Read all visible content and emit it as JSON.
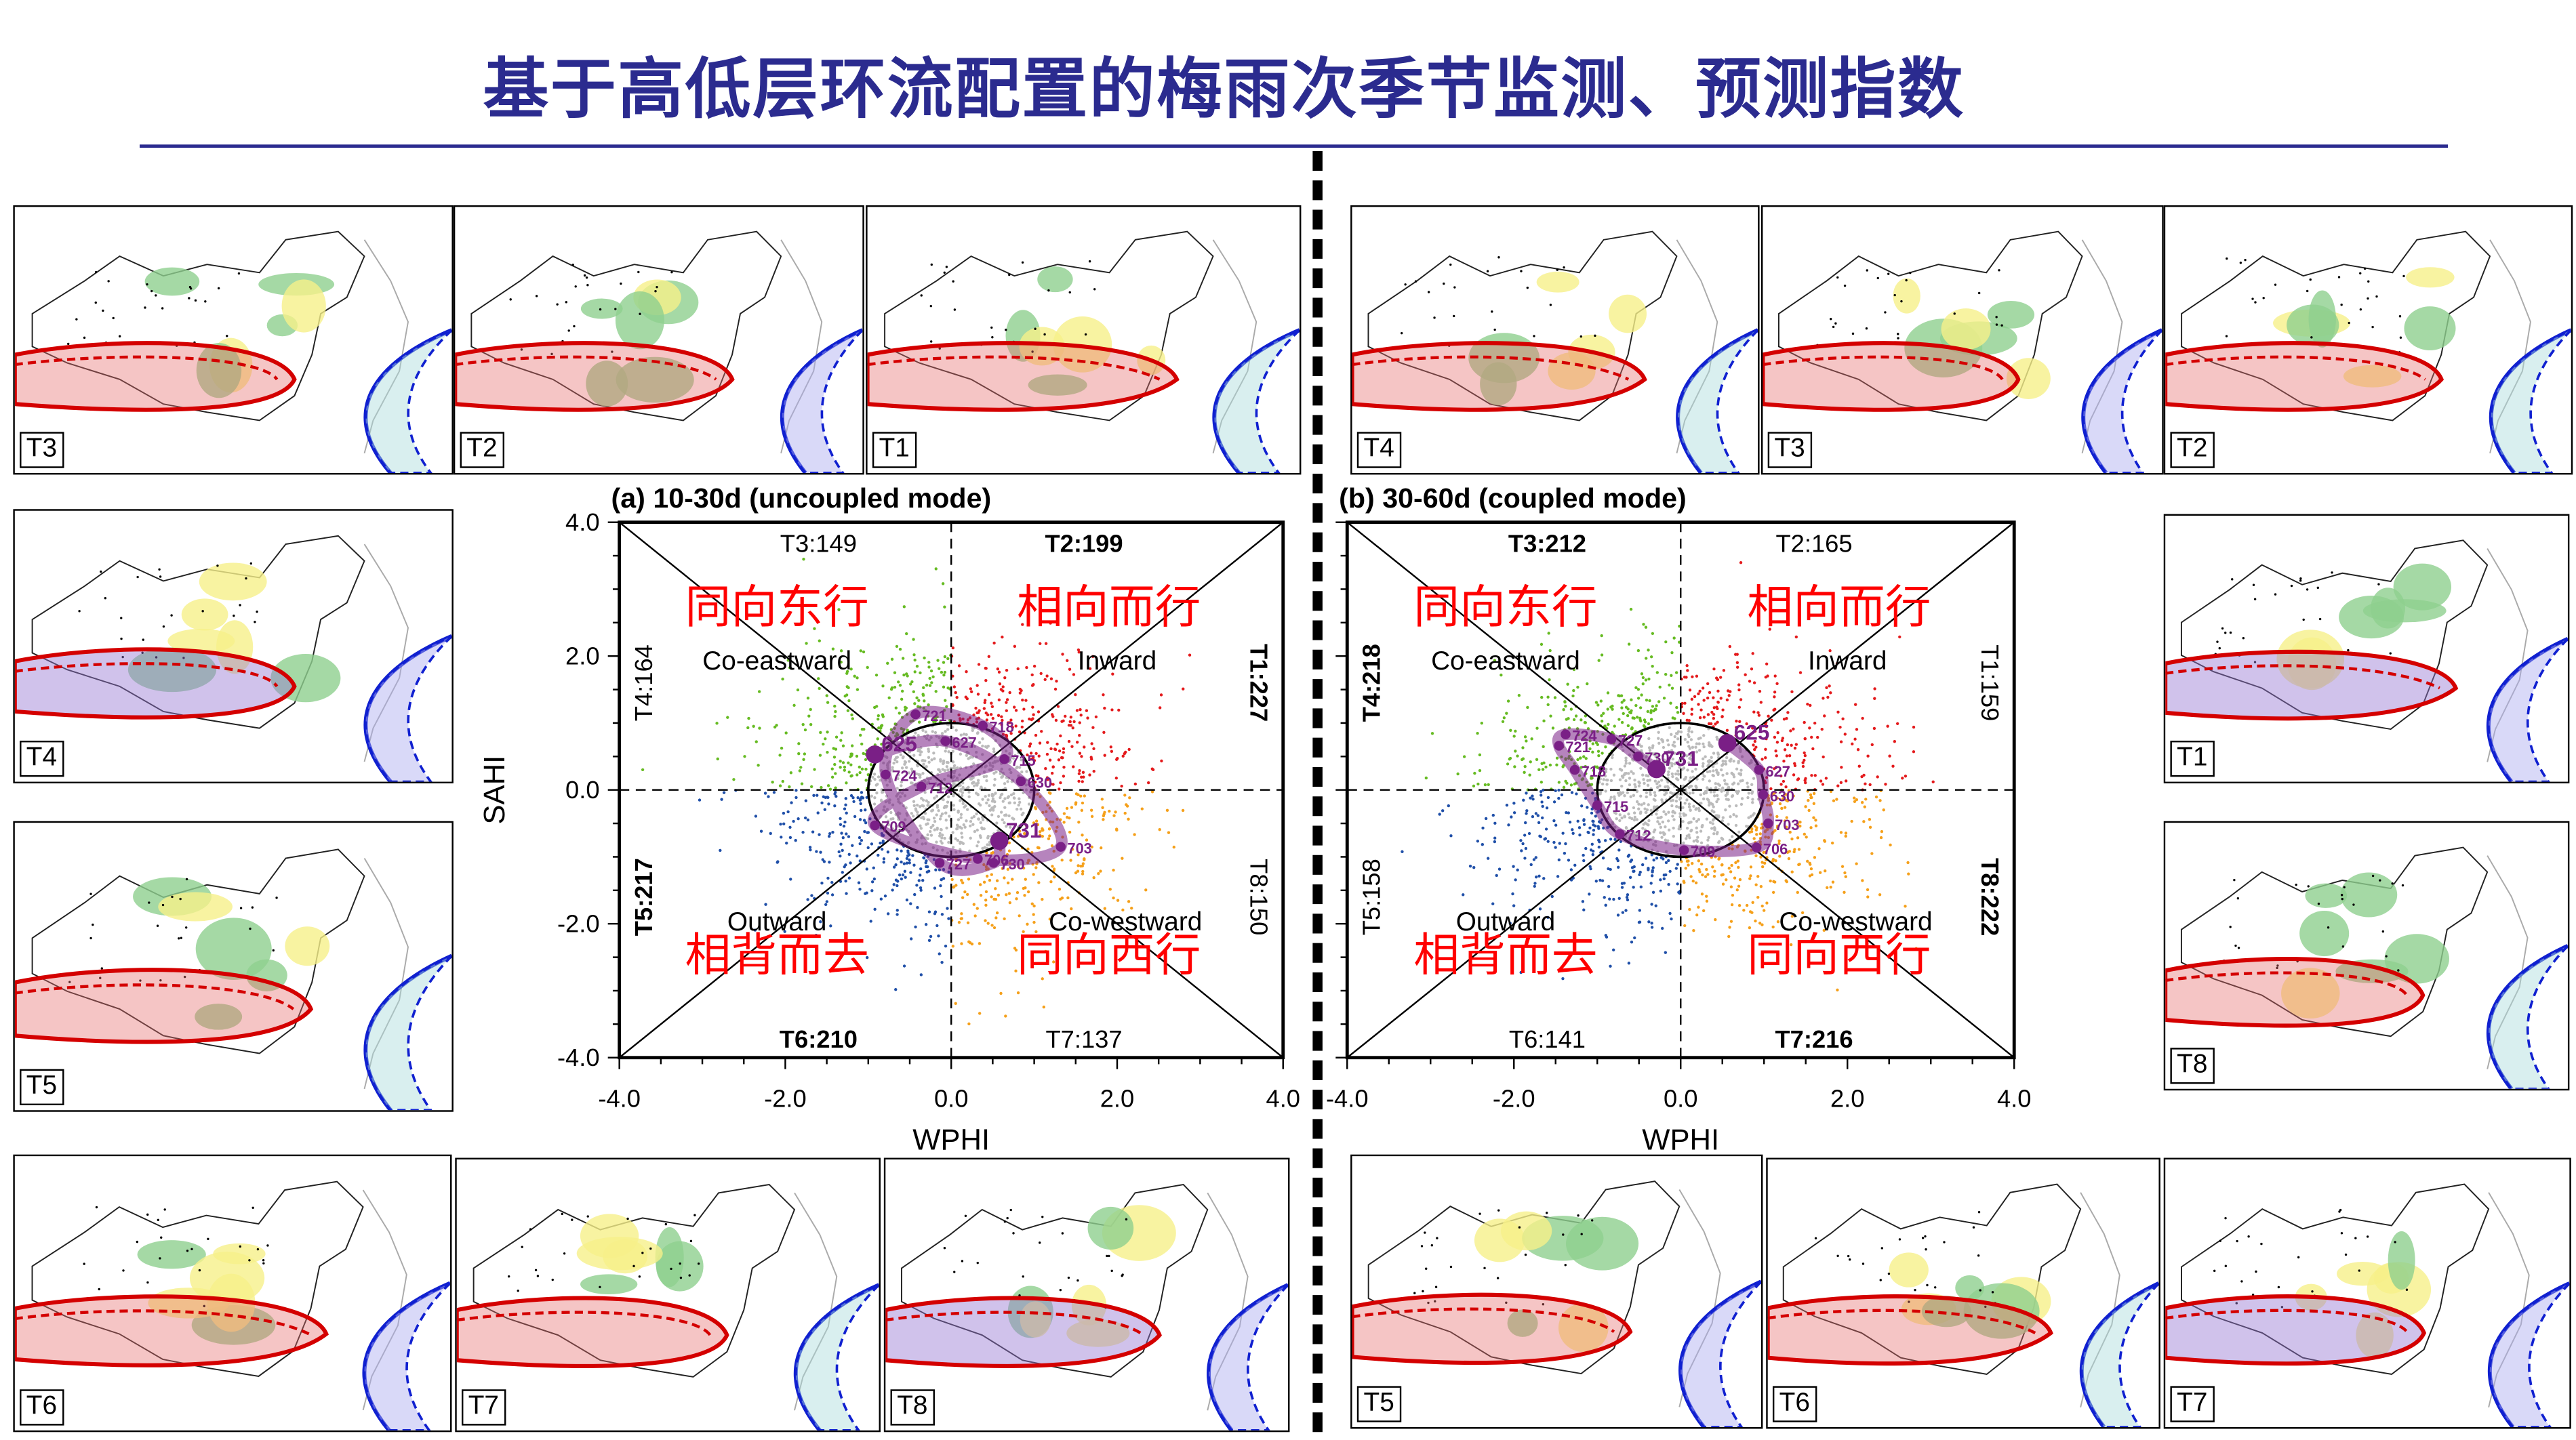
{
  "title": "基于高低层环流配置的梅雨次季节监测、预测指数",
  "panels_left": {
    "top": [
      "T3",
      "T2",
      "T1"
    ],
    "side": [
      "T4",
      "T5"
    ],
    "bottom": [
      "T6",
      "T7",
      "T8"
    ]
  },
  "panels_right": {
    "top": [
      "T4",
      "T3",
      "T2"
    ],
    "side": [
      "T1",
      "T8"
    ],
    "bottom": [
      "T5",
      "T6",
      "T7"
    ]
  },
  "colors": {
    "title": "#2b2b8f",
    "inward": "#e41a1c",
    "co_eastward": "#66bb22",
    "outward": "#1f4fa8",
    "co_westward": "#f5a01a",
    "neutral": "#bbbbbb",
    "trajectory": "#7a1f86",
    "chinese_label": "#ff0000"
  },
  "chart_data": [
    {
      "type": "scatter",
      "title": "(a) 10-30d (uncoupled mode)",
      "xlabel": "WPHI",
      "ylabel": "SAHI",
      "xlim": [
        -4,
        4
      ],
      "ylim": [
        -4,
        4
      ],
      "xticks": [
        "-4.0",
        "-2.0",
        "0.0",
        "2.0",
        "4.0"
      ],
      "yticks": [
        "4.0",
        "2.0",
        "0.0",
        "-2.0",
        "-4.0"
      ],
      "phase_counts": {
        "T1": "T1:227",
        "T2": "T2:199",
        "T3": "T3:149",
        "T4": "T4:164",
        "T5": "T5:217",
        "T6": "T6:210",
        "T7": "T7:137",
        "T8": "T8:150"
      },
      "bold_phases": [
        "T1",
        "T2",
        "T5",
        "T6"
      ],
      "regions": {
        "co_eastward": "Co-eastward",
        "inward": "Inward",
        "outward": "Outward",
        "co_westward": "Co-westward"
      },
      "regions_cn": {
        "co_eastward": "同向东行",
        "inward": "相向而行",
        "outward": "相背而去",
        "co_westward": "同向西行"
      },
      "trajectory": [
        {
          "label": "625",
          "x": -0.92,
          "y": 0.53
        },
        {
          "label": "627",
          "x": -0.07,
          "y": 0.73
        },
        {
          "label": "630",
          "x": 0.84,
          "y": 0.13
        },
        {
          "label": "703",
          "x": 1.32,
          "y": -0.85
        },
        {
          "label": "706",
          "x": 0.32,
          "y": -1.03
        },
        {
          "label": "709",
          "x": -0.92,
          "y": -0.53
        },
        {
          "label": "712",
          "x": -0.36,
          "y": 0.05
        },
        {
          "label": "715",
          "x": 0.64,
          "y": 0.46
        },
        {
          "label": "718",
          "x": 0.38,
          "y": 0.96
        },
        {
          "label": "721",
          "x": -0.43,
          "y": 1.13
        },
        {
          "label": "724",
          "x": -0.79,
          "y": 0.23
        },
        {
          "label": "727",
          "x": -0.14,
          "y": -1.09
        },
        {
          "label": "730",
          "x": 0.51,
          "y": -1.09
        },
        {
          "label": "731",
          "x": 0.58,
          "y": -0.76
        }
      ]
    },
    {
      "type": "scatter",
      "title": "(b) 30-60d (coupled mode)",
      "xlabel": "WPHI",
      "ylabel": "",
      "xlim": [
        -4,
        4
      ],
      "ylim": [
        -4,
        4
      ],
      "xticks": [
        "-4.0",
        "-2.0",
        "0.0",
        "2.0",
        "4.0"
      ],
      "yticks": [],
      "phase_counts": {
        "T1": "T1:159",
        "T2": "T2:165",
        "T3": "T3:212",
        "T4": "T4:218",
        "T5": "T5:158",
        "T6": "T6:141",
        "T7": "T7:216",
        "T8": "T8:222"
      },
      "bold_phases": [
        "T3",
        "T4",
        "T7",
        "T8"
      ],
      "regions": {
        "co_eastward": "Co-eastward",
        "inward": "Inward",
        "outward": "Outward",
        "co_westward": "Co-westward"
      },
      "regions_cn": {
        "co_eastward": "同向东行",
        "inward": "相向而行",
        "outward": "相背而去",
        "co_westward": "同向西行"
      },
      "trajectory": [
        {
          "label": "625",
          "x": 0.56,
          "y": 0.7
        },
        {
          "label": "627",
          "x": 0.94,
          "y": 0.3
        },
        {
          "label": "630",
          "x": 0.99,
          "y": -0.07
        },
        {
          "label": "703",
          "x": 1.05,
          "y": -0.5
        },
        {
          "label": "706",
          "x": 0.91,
          "y": -0.86
        },
        {
          "label": "709",
          "x": 0.04,
          "y": -0.9
        },
        {
          "label": "712",
          "x": -0.73,
          "y": -0.66
        },
        {
          "label": "715",
          "x": -1.0,
          "y": -0.23
        },
        {
          "label": "718",
          "x": -1.27,
          "y": 0.3
        },
        {
          "label": "721",
          "x": -1.46,
          "y": 0.66
        },
        {
          "label": "724",
          "x": -1.38,
          "y": 0.83
        },
        {
          "label": "727",
          "x": -0.83,
          "y": 0.76
        },
        {
          "label": "730",
          "x": -0.51,
          "y": 0.5
        },
        {
          "label": "731",
          "x": -0.29,
          "y": 0.31
        }
      ]
    }
  ]
}
